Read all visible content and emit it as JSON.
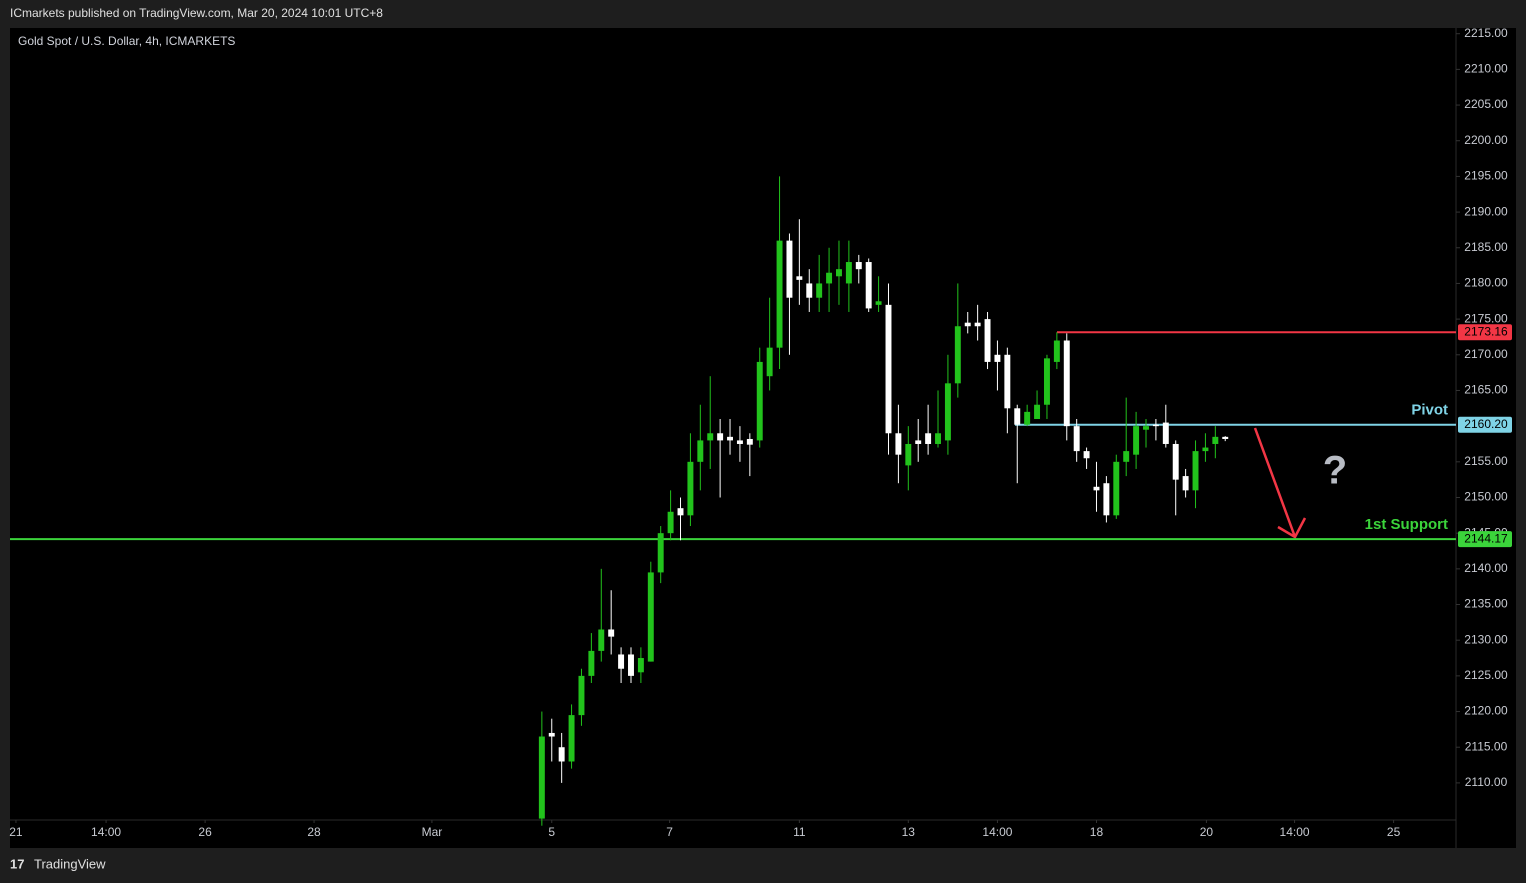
{
  "header": {
    "publisher": "ICmarkets published on TradingView.com, Mar 20, 2024 10:01 UTC+8",
    "brand": "TradingView"
  },
  "chart_data": {
    "type": "candlestick",
    "title": "Gold Spot / U.S. Dollar, 4h, ICMARKETS",
    "up_color": "#22c31c",
    "down_color": "#ffffff",
    "open": [
      2105,
      2117,
      2115,
      2113,
      2119.5,
      2125,
      2128.5,
      2131.5,
      2128,
      2128,
      2125.5,
      2127,
      2139.5,
      2145,
      2148.5,
      2147.5,
      2155,
      2158,
      2159,
      2158.5,
      2158,
      2158.2,
      2158,
      2167,
      2171,
      2186,
      2181,
      2180,
      2178,
      2180,
      2181,
      2180,
      2183,
      2183,
      2177,
      2177,
      2159,
      2154.5,
      2158,
      2159,
      2157.5,
      2158,
      2166,
      2174.5,
      2174.5,
      2175,
      2170,
      2170,
      2162.5,
      2160.2,
      2161,
      2163,
      2169,
      2172,
      2160,
      2156.5,
      2151.5,
      2152,
      2147.5,
      2155,
      2156,
      2159.5,
      2160.2,
      2160.5,
      2157.5,
      2153,
      2151,
      2156.5,
      2157.5,
      2158.5
    ],
    "high": [
      2120,
      2119,
      2117,
      2121,
      2126,
      2131,
      2140,
      2137,
      2129,
      2129,
      2129,
      2141,
      2146,
      2151,
      2150,
      2159,
      2163,
      2167,
      2161,
      2161,
      2160,
      2159,
      2171,
      2178,
      2195,
      2187,
      2189,
      2182,
      2184,
      2185,
      2186,
      2186,
      2184,
      2183.5,
      2181,
      2180,
      2163,
      2160,
      2161,
      2163,
      2165,
      2170,
      2180,
      2176,
      2177,
      2176,
      2172,
      2171,
      2163,
      2163,
      2165,
      2170,
      2173.16,
      2173,
      2161,
      2157,
      2155,
      2153,
      2156,
      2164,
      2162,
      2161,
      2161,
      2163,
      2158,
      2154,
      2158,
      2159,
      2160,
      2158.6
    ],
    "low": [
      2104,
      2113,
      2110,
      2112,
      2118,
      2124,
      2127,
      2128,
      2124,
      2124,
      2124,
      2127,
      2138,
      2144,
      2144,
      2146,
      2151,
      2154,
      2150,
      2156,
      2155,
      2153,
      2157,
      2165,
      2168,
      2170,
      2177,
      2176,
      2176,
      2176,
      2177,
      2176,
      2180,
      2176,
      2176,
      2156,
      2152,
      2151,
      2155,
      2156,
      2157,
      2156,
      2164,
      2173,
      2172,
      2168,
      2165,
      2159,
      2152,
      2160,
      2161,
      2161,
      2168,
      2158,
      2155,
      2154,
      2148,
      2146.5,
      2147,
      2153,
      2154,
      2157,
      2158,
      2157,
      2147.5,
      2150,
      2148.5,
      2155,
      2155.5,
      2157.9
    ],
    "close": [
      2116.5,
      2116.5,
      2113,
      2119.5,
      2125,
      2128.5,
      2131.5,
      2130.5,
      2126,
      2125,
      2127.5,
      2139.5,
      2145,
      2148,
      2147.5,
      2155,
      2158,
      2159,
      2158,
      2158,
      2157.5,
      2157.4,
      2169,
      2171,
      2186,
      2178,
      2180.5,
      2178,
      2180,
      2181.5,
      2182,
      2183,
      2182,
      2176.5,
      2177.5,
      2159,
      2156,
      2157.5,
      2157.5,
      2157.5,
      2159,
      2166,
      2174,
      2174,
      2174,
      2169,
      2169,
      2162.5,
      2160.2,
      2162,
      2163,
      2169.5,
      2172,
      2160,
      2156.5,
      2155.5,
      2151,
      2147.5,
      2155,
      2156.5,
      2160,
      2160,
      2160,
      2157.5,
      2152.5,
      2151,
      2156.5,
      2157,
      2158.5,
      2158.2
    ],
    "xlim": [
      -53.7,
      92.3
    ],
    "xticks": [
      {
        "value": -53.1,
        "label": "21"
      },
      {
        "value": -44,
        "label": "14:00"
      },
      {
        "value": -34,
        "label": "26"
      },
      {
        "value": -23,
        "label": "28"
      },
      {
        "value": -11.1,
        "label": "Mar"
      },
      {
        "value": 1,
        "label": "5"
      },
      {
        "value": 12.9,
        "label": "7"
      },
      {
        "value": 26,
        "label": "11"
      },
      {
        "value": 37,
        "label": "13"
      },
      {
        "value": 46,
        "label": "14:00"
      },
      {
        "value": 56,
        "label": "18"
      },
      {
        "value": 67.1,
        "label": "20"
      },
      {
        "value": 76,
        "label": "14:00"
      },
      {
        "value": 86,
        "label": "25"
      }
    ],
    "ylim": [
      2104.8,
      2215.8
    ],
    "yticks": [
      {
        "value": 2110,
        "label": "2110.00"
      },
      {
        "value": 2115,
        "label": "2115.00"
      },
      {
        "value": 2120,
        "label": "2120.00"
      },
      {
        "value": 2125,
        "label": "2125.00"
      },
      {
        "value": 2130,
        "label": "2130.00"
      },
      {
        "value": 2135,
        "label": "2135.00"
      },
      {
        "value": 2140,
        "label": "2140.00"
      },
      {
        "value": 2145,
        "label": "2145.00"
      },
      {
        "value": 2150,
        "label": "2150.00"
      },
      {
        "value": 2155,
        "label": "2155.00"
      },
      {
        "value": 2165,
        "label": "2165.00"
      },
      {
        "value": 2170,
        "label": "2170.00"
      },
      {
        "value": 2175,
        "label": "2175.00"
      },
      {
        "value": 2180,
        "label": "2180.00"
      },
      {
        "value": 2185,
        "label": "2185.00"
      },
      {
        "value": 2190,
        "label": "2190.00"
      },
      {
        "value": 2195,
        "label": "2195.00"
      },
      {
        "value": 2200,
        "label": "2200.00"
      },
      {
        "value": 2205,
        "label": "2205.00"
      },
      {
        "value": 2210,
        "label": "2210.00"
      },
      {
        "value": 2215,
        "label": "2215.00"
      }
    ],
    "levels": [
      {
        "value": 2173.16,
        "color": "#f23645"
      },
      {
        "name": "Pivot",
        "value": 2160.2,
        "value_label": "2160.20",
        "color": "#7fd3e6"
      },
      {
        "name": "1st Support",
        "value": 2144.17,
        "color": "#3bd43b"
      }
    ],
    "annotation": "?"
  }
}
